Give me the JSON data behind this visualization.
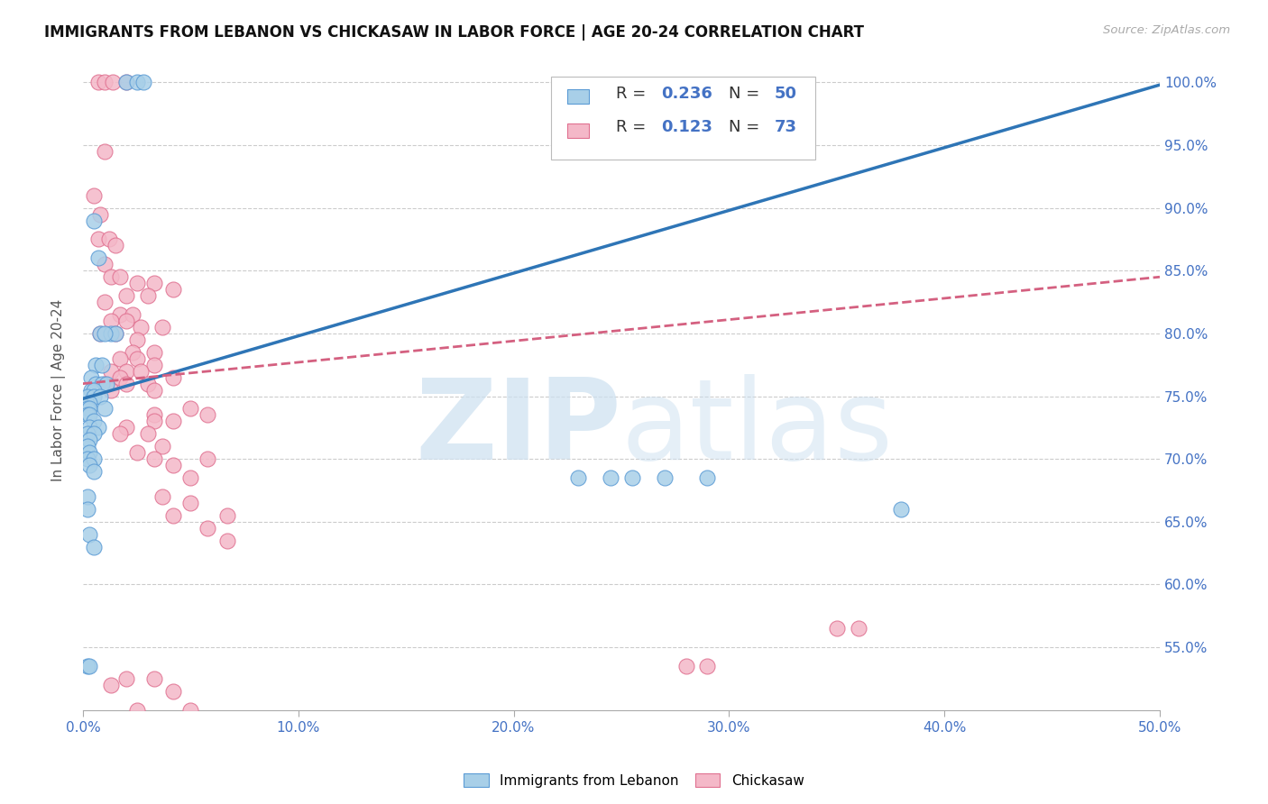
{
  "title": "IMMIGRANTS FROM LEBANON VS CHICKASAW IN LABOR FORCE | AGE 20-24 CORRELATION CHART",
  "source": "Source: ZipAtlas.com",
  "ylabel": "In Labor Force | Age 20-24",
  "legend_label1": "Immigrants from Lebanon",
  "legend_label2": "Chickasaw",
  "R1": 0.236,
  "N1": 50,
  "R2": 0.123,
  "N2": 73,
  "xlim": [
    0.0,
    0.5
  ],
  "ylim": [
    0.5,
    1.01
  ],
  "xticks": [
    0.0,
    0.1,
    0.2,
    0.3,
    0.4,
    0.5
  ],
  "yticks": [
    0.55,
    0.6,
    0.65,
    0.7,
    0.75,
    0.8,
    0.85,
    0.9,
    0.95,
    1.0
  ],
  "ytick_labels_right": [
    "55.0%",
    "60.0%",
    "65.0%",
    "70.0%",
    "75.0%",
    "80.0%",
    "85.0%",
    "90.0%",
    "95.0%",
    "100.0%"
  ],
  "xtick_labels": [
    "0.0%",
    "10.0%",
    "20.0%",
    "30.0%",
    "40.0%",
    "50.0%"
  ],
  "color_blue_fill": "#a8cfe8",
  "color_blue_edge": "#5b9bd5",
  "color_pink_fill": "#f4b8c8",
  "color_pink_edge": "#e07090",
  "color_blue_line": "#2e75b6",
  "color_pink_line": "#d46080",
  "axis_label_color": "#4472c4",
  "grid_color": "#cccccc",
  "background_color": "#ffffff",
  "blue_scatter_x": [
    0.02,
    0.025,
    0.028,
    0.005,
    0.007,
    0.008,
    0.013,
    0.015,
    0.01,
    0.006,
    0.009,
    0.004,
    0.006,
    0.009,
    0.011,
    0.004,
    0.005,
    0.002,
    0.005,
    0.008,
    0.003,
    0.002,
    0.003,
    0.01,
    0.002,
    0.003,
    0.005,
    0.003,
    0.007,
    0.002,
    0.005,
    0.003,
    0.002,
    0.003,
    0.002,
    0.005,
    0.003,
    0.005,
    0.23,
    0.245,
    0.255,
    0.27,
    0.38,
    0.29,
    0.002,
    0.002,
    0.003,
    0.005,
    0.002,
    0.003
  ],
  "blue_scatter_y": [
    1.0,
    1.0,
    1.0,
    0.89,
    0.86,
    0.8,
    0.8,
    0.8,
    0.8,
    0.775,
    0.775,
    0.765,
    0.76,
    0.76,
    0.76,
    0.755,
    0.755,
    0.75,
    0.75,
    0.75,
    0.745,
    0.74,
    0.74,
    0.74,
    0.735,
    0.735,
    0.73,
    0.725,
    0.725,
    0.72,
    0.72,
    0.715,
    0.71,
    0.705,
    0.7,
    0.7,
    0.695,
    0.69,
    0.685,
    0.685,
    0.685,
    0.685,
    0.66,
    0.685,
    0.67,
    0.66,
    0.64,
    0.63,
    0.535,
    0.535
  ],
  "pink_scatter_x": [
    0.007,
    0.01,
    0.014,
    0.02,
    0.01,
    0.005,
    0.008,
    0.007,
    0.012,
    0.015,
    0.01,
    0.013,
    0.017,
    0.025,
    0.033,
    0.042,
    0.02,
    0.03,
    0.01,
    0.017,
    0.023,
    0.013,
    0.02,
    0.027,
    0.037,
    0.008,
    0.015,
    0.025,
    0.023,
    0.033,
    0.017,
    0.025,
    0.033,
    0.013,
    0.02,
    0.027,
    0.017,
    0.042,
    0.01,
    0.02,
    0.03,
    0.013,
    0.033,
    0.05,
    0.033,
    0.058,
    0.033,
    0.042,
    0.02,
    0.017,
    0.03,
    0.037,
    0.025,
    0.033,
    0.058,
    0.042,
    0.05,
    0.037,
    0.05,
    0.042,
    0.067,
    0.058,
    0.067,
    0.35,
    0.29,
    0.02,
    0.033,
    0.013,
    0.042,
    0.025,
    0.05,
    0.28,
    0.36
  ],
  "pink_scatter_y": [
    1.0,
    1.0,
    1.0,
    1.0,
    0.945,
    0.91,
    0.895,
    0.875,
    0.875,
    0.87,
    0.855,
    0.845,
    0.845,
    0.84,
    0.84,
    0.835,
    0.83,
    0.83,
    0.825,
    0.815,
    0.815,
    0.81,
    0.81,
    0.805,
    0.805,
    0.8,
    0.8,
    0.795,
    0.785,
    0.785,
    0.78,
    0.78,
    0.775,
    0.77,
    0.77,
    0.77,
    0.765,
    0.765,
    0.76,
    0.76,
    0.76,
    0.755,
    0.755,
    0.74,
    0.735,
    0.735,
    0.73,
    0.73,
    0.725,
    0.72,
    0.72,
    0.71,
    0.705,
    0.7,
    0.7,
    0.695,
    0.685,
    0.67,
    0.665,
    0.655,
    0.655,
    0.645,
    0.635,
    0.565,
    0.535,
    0.525,
    0.525,
    0.52,
    0.515,
    0.5,
    0.5,
    0.535,
    0.565
  ],
  "blue_trend_x": [
    0.0,
    0.5
  ],
  "blue_trend_y": [
    0.748,
    0.998
  ],
  "pink_trend_x": [
    0.0,
    0.5
  ],
  "pink_trend_y": [
    0.76,
    0.845
  ]
}
